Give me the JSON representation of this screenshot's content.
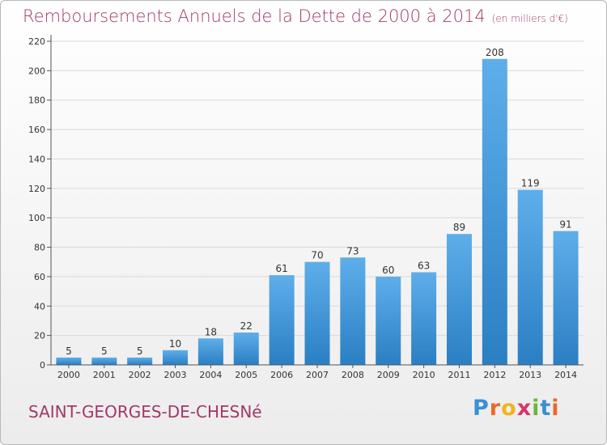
{
  "header": {
    "title": "Remboursements Annuels de la Dette de 2000 à 2014",
    "subtitle": "(en milliers d'€)"
  },
  "footer": {
    "commune": "SAINT-GEORGES-DE-CHESNé",
    "logo_letters": [
      "P",
      "r",
      "o",
      "x",
      "i",
      "t",
      "i"
    ],
    "logo_colors": [
      "#3b8fd6",
      "#e8692a",
      "#f0b41c",
      "#d8366b",
      "#6fb43f",
      "#3b8fd6",
      "#e8692a"
    ]
  },
  "colors": {
    "bar_light": "#5eaeea",
    "bar_dark": "#2a7fc3",
    "axis": "#555555",
    "grid": "#d9d9d9",
    "label": "#333333"
  },
  "chart_data": {
    "type": "bar",
    "categories": [
      "2000",
      "2001",
      "2002",
      "2003",
      "2004",
      "2005",
      "2006",
      "2007",
      "2008",
      "2009",
      "2010",
      "2011",
      "2012",
      "2013",
      "2014"
    ],
    "values": [
      5,
      5,
      5,
      10,
      18,
      22,
      61,
      70,
      73,
      60,
      63,
      89,
      208,
      119,
      91
    ],
    "yticks": [
      0,
      20,
      40,
      60,
      80,
      100,
      120,
      140,
      160,
      180,
      200,
      220
    ],
    "ylim": [
      0,
      220
    ],
    "title": "Remboursements Annuels de la Dette de 2000 à 2014",
    "xlabel": "",
    "ylabel": "",
    "grid": true
  }
}
